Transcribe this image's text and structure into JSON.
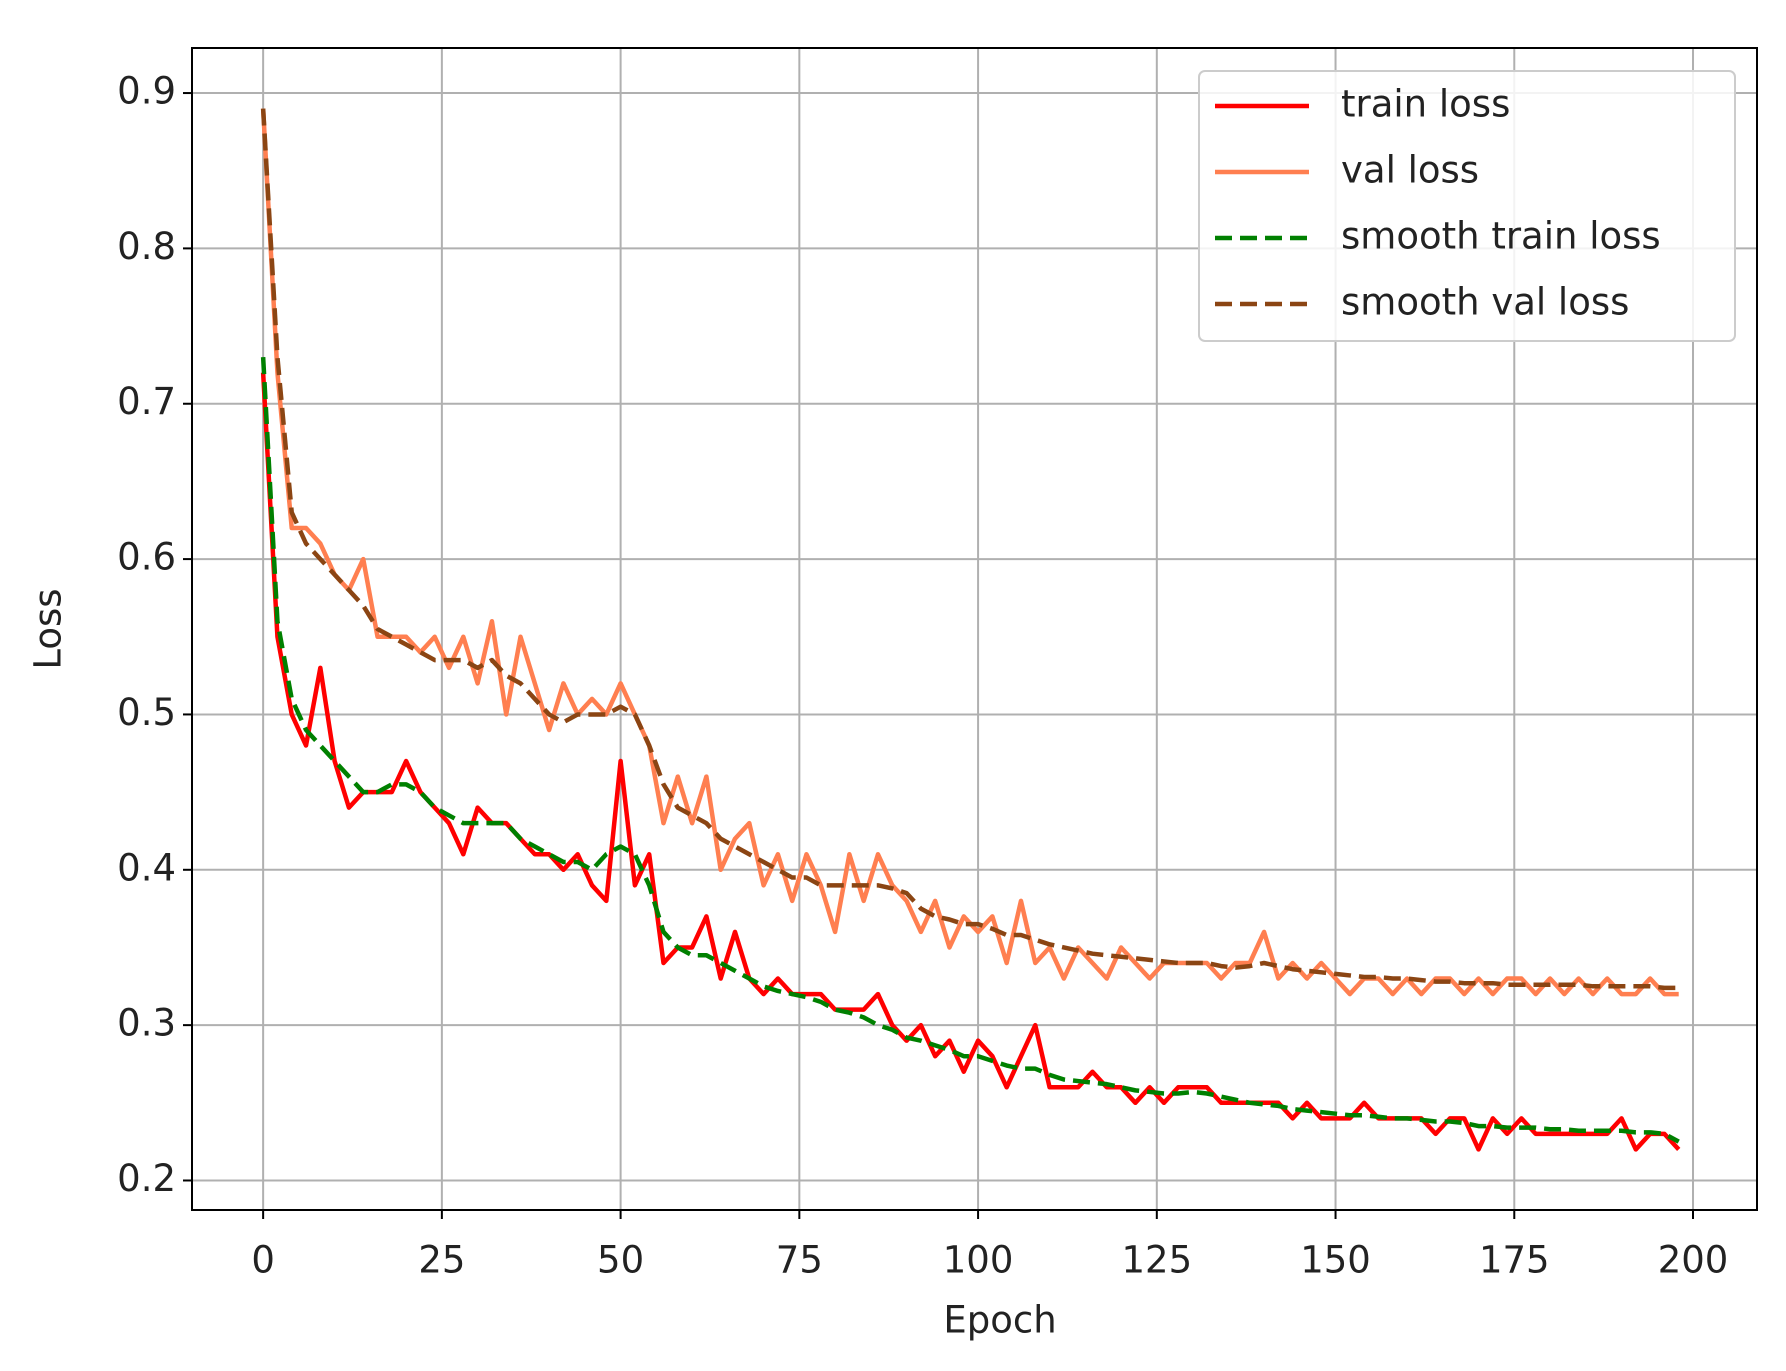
{
  "chart_data": {
    "type": "line",
    "xlabel": "Epoch",
    "ylabel": "Loss",
    "xlim": [
      -9.95,
      208.95
    ],
    "ylim": [
      0.181,
      0.929
    ],
    "xticks": [
      0,
      25,
      50,
      75,
      100,
      125,
      150,
      175,
      200
    ],
    "yticks": [
      0.2,
      0.3,
      0.4,
      0.5,
      0.6,
      0.7,
      0.8,
      0.9
    ],
    "grid": true,
    "legend": "upper right",
    "x": [
      0,
      2,
      4,
      6,
      8,
      10,
      12,
      14,
      16,
      18,
      20,
      22,
      24,
      26,
      28,
      30,
      32,
      34,
      36,
      38,
      40,
      42,
      44,
      46,
      48,
      50,
      52,
      54,
      56,
      58,
      60,
      62,
      64,
      66,
      68,
      70,
      72,
      74,
      76,
      78,
      80,
      82,
      84,
      86,
      88,
      90,
      92,
      94,
      96,
      98,
      100,
      102,
      104,
      106,
      108,
      110,
      112,
      114,
      116,
      118,
      120,
      122,
      124,
      126,
      128,
      130,
      132,
      134,
      136,
      138,
      140,
      142,
      144,
      146,
      148,
      150,
      152,
      154,
      156,
      158,
      160,
      162,
      164,
      166,
      168,
      170,
      172,
      174,
      176,
      178,
      180,
      182,
      184,
      186,
      188,
      190,
      192,
      194,
      196,
      198
    ],
    "series": [
      {
        "name": "train loss",
        "color": "#ff0000",
        "dash": false,
        "values": [
          0.72,
          0.55,
          0.5,
          0.48,
          0.53,
          0.47,
          0.44,
          0.45,
          0.45,
          0.45,
          0.47,
          0.45,
          0.44,
          0.43,
          0.41,
          0.44,
          0.43,
          0.43,
          0.42,
          0.41,
          0.41,
          0.4,
          0.41,
          0.39,
          0.38,
          0.47,
          0.39,
          0.41,
          0.34,
          0.35,
          0.35,
          0.37,
          0.33,
          0.36,
          0.33,
          0.32,
          0.33,
          0.32,
          0.32,
          0.32,
          0.31,
          0.31,
          0.31,
          0.32,
          0.3,
          0.29,
          0.3,
          0.28,
          0.29,
          0.27,
          0.29,
          0.28,
          0.26,
          0.28,
          0.3,
          0.26,
          0.26,
          0.26,
          0.27,
          0.26,
          0.26,
          0.25,
          0.26,
          0.25,
          0.26,
          0.26,
          0.26,
          0.25,
          0.25,
          0.25,
          0.25,
          0.25,
          0.24,
          0.25,
          0.24,
          0.24,
          0.24,
          0.25,
          0.24,
          0.24,
          0.24,
          0.24,
          0.23,
          0.24,
          0.24,
          0.22,
          0.24,
          0.23,
          0.24,
          0.23,
          0.23,
          0.23,
          0.23,
          0.23,
          0.23,
          0.24,
          0.22,
          0.23,
          0.23,
          0.22
        ]
      },
      {
        "name": "val loss",
        "color": "#ff7f50",
        "dash": false,
        "values": [
          0.89,
          0.72,
          0.62,
          0.62,
          0.61,
          0.59,
          0.58,
          0.6,
          0.55,
          0.55,
          0.55,
          0.54,
          0.55,
          0.53,
          0.55,
          0.52,
          0.56,
          0.5,
          0.55,
          0.52,
          0.49,
          0.52,
          0.5,
          0.51,
          0.5,
          0.52,
          0.5,
          0.48,
          0.43,
          0.46,
          0.43,
          0.46,
          0.4,
          0.42,
          0.43,
          0.39,
          0.41,
          0.38,
          0.41,
          0.39,
          0.36,
          0.41,
          0.38,
          0.41,
          0.39,
          0.38,
          0.36,
          0.38,
          0.35,
          0.37,
          0.36,
          0.37,
          0.34,
          0.38,
          0.34,
          0.35,
          0.33,
          0.35,
          0.34,
          0.33,
          0.35,
          0.34,
          0.33,
          0.34,
          0.34,
          0.34,
          0.34,
          0.33,
          0.34,
          0.34,
          0.36,
          0.33,
          0.34,
          0.33,
          0.34,
          0.33,
          0.32,
          0.33,
          0.33,
          0.32,
          0.33,
          0.32,
          0.33,
          0.33,
          0.32,
          0.33,
          0.32,
          0.33,
          0.33,
          0.32,
          0.33,
          0.32,
          0.33,
          0.32,
          0.33,
          0.32,
          0.32,
          0.33,
          0.32,
          0.32
        ]
      },
      {
        "name": "smooth train loss",
        "color": "#008000",
        "dash": true,
        "values": [
          0.73,
          0.56,
          0.51,
          0.49,
          0.48,
          0.47,
          0.46,
          0.45,
          0.45,
          0.455,
          0.455,
          0.45,
          0.44,
          0.435,
          0.43,
          0.43,
          0.43,
          0.43,
          0.42,
          0.415,
          0.41,
          0.405,
          0.405,
          0.4,
          0.41,
          0.415,
          0.41,
          0.39,
          0.36,
          0.35,
          0.345,
          0.345,
          0.34,
          0.335,
          0.33,
          0.325,
          0.322,
          0.32,
          0.318,
          0.315,
          0.31,
          0.308,
          0.305,
          0.3,
          0.297,
          0.292,
          0.29,
          0.287,
          0.284,
          0.28,
          0.28,
          0.277,
          0.274,
          0.272,
          0.272,
          0.268,
          0.265,
          0.264,
          0.263,
          0.262,
          0.26,
          0.258,
          0.257,
          0.256,
          0.256,
          0.257,
          0.256,
          0.254,
          0.252,
          0.25,
          0.249,
          0.248,
          0.246,
          0.245,
          0.244,
          0.243,
          0.242,
          0.242,
          0.241,
          0.24,
          0.24,
          0.239,
          0.238,
          0.238,
          0.237,
          0.235,
          0.235,
          0.234,
          0.234,
          0.234,
          0.233,
          0.233,
          0.232,
          0.232,
          0.232,
          0.232,
          0.231,
          0.231,
          0.23,
          0.225
        ]
      },
      {
        "name": "smooth val loss",
        "color": "#8b4513",
        "dash": true,
        "values": [
          0.89,
          0.73,
          0.63,
          0.61,
          0.6,
          0.59,
          0.58,
          0.57,
          0.555,
          0.55,
          0.545,
          0.54,
          0.535,
          0.535,
          0.535,
          0.53,
          0.535,
          0.525,
          0.52,
          0.51,
          0.5,
          0.495,
          0.5,
          0.5,
          0.5,
          0.505,
          0.5,
          0.48,
          0.455,
          0.44,
          0.435,
          0.43,
          0.42,
          0.415,
          0.41,
          0.405,
          0.4,
          0.395,
          0.395,
          0.39,
          0.39,
          0.39,
          0.39,
          0.39,
          0.388,
          0.385,
          0.375,
          0.37,
          0.368,
          0.365,
          0.365,
          0.362,
          0.358,
          0.358,
          0.355,
          0.352,
          0.35,
          0.348,
          0.346,
          0.345,
          0.344,
          0.343,
          0.342,
          0.341,
          0.34,
          0.34,
          0.34,
          0.338,
          0.337,
          0.338,
          0.34,
          0.338,
          0.336,
          0.335,
          0.334,
          0.333,
          0.332,
          0.331,
          0.331,
          0.33,
          0.33,
          0.329,
          0.328,
          0.328,
          0.327,
          0.327,
          0.327,
          0.326,
          0.326,
          0.326,
          0.326,
          0.326,
          0.326,
          0.325,
          0.325,
          0.325,
          0.325,
          0.325,
          0.324,
          0.324
        ]
      }
    ]
  }
}
